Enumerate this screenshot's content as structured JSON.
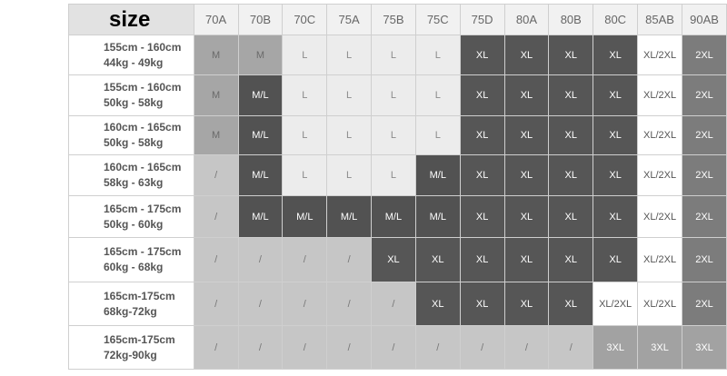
{
  "table": {
    "corner_label": "size",
    "columns": [
      "70A",
      "70B",
      "70C",
      "75A",
      "75B",
      "75C",
      "75D",
      "80A",
      "80B",
      "80C",
      "85AB",
      "90AB"
    ],
    "rows": [
      {
        "height_range": "155cm - 160cm",
        "weight_range": "44kg - 49kg",
        "sizes": [
          "M",
          "M",
          "L",
          "L",
          "L",
          "L",
          "XL",
          "XL",
          "XL",
          "XL",
          "XL/2XL",
          "2XL"
        ]
      },
      {
        "height_range": "155cm - 160cm",
        "weight_range": "50kg - 58kg",
        "sizes": [
          "M",
          "M/L",
          "L",
          "L",
          "L",
          "L",
          "XL",
          "XL",
          "XL",
          "XL",
          "XL/2XL",
          "2XL"
        ]
      },
      {
        "height_range": "160cm - 165cm",
        "weight_range": "50kg - 58kg",
        "sizes": [
          "M",
          "M/L",
          "L",
          "L",
          "L",
          "L",
          "XL",
          "XL",
          "XL",
          "XL",
          "XL/2XL",
          "2XL"
        ]
      },
      {
        "height_range": "160cm - 165cm",
        "weight_range": "58kg - 63kg",
        "sizes": [
          "/",
          "M/L",
          "L",
          "L",
          "L",
          "M/L",
          "XL",
          "XL",
          "XL",
          "XL",
          "XL/2XL",
          "2XL"
        ]
      },
      {
        "height_range": "165cm - 175cm",
        "weight_range": "50kg - 60kg",
        "sizes": [
          "/",
          "M/L",
          "M/L",
          "M/L",
          "M/L",
          "M/L",
          "XL",
          "XL",
          "XL",
          "XL",
          "XL/2XL",
          "2XL"
        ]
      },
      {
        "height_range": "165cm - 175cm",
        "weight_range": "60kg - 68kg",
        "sizes": [
          "/",
          "/",
          "/",
          "/",
          "XL",
          "XL",
          "XL",
          "XL",
          "XL",
          "XL",
          "XL/2XL",
          "2XL"
        ]
      },
      {
        "height_range": "165cm-175cm",
        "weight_range": "68kg-72kg",
        "sizes": [
          "/",
          "/",
          "/",
          "/",
          "/",
          "XL",
          "XL",
          "XL",
          "XL",
          "XL/2XL",
          "XL/2XL",
          "2XL"
        ]
      },
      {
        "height_range": "165cm-175cm",
        "weight_range": "72kg-90kg",
        "sizes": [
          "/",
          "/",
          "/",
          "/",
          "/",
          "/",
          "/",
          "/",
          "/",
          "3XL",
          "3XL",
          "3XL"
        ]
      }
    ]
  },
  "size_colors": {
    "M": {
      "bg": "#a6a6a6",
      "fg": "#6a6a6a"
    },
    "M/L": {
      "bg": "#525252",
      "fg": "#ffffff"
    },
    "L": {
      "bg": "#ececec",
      "fg": "#8a8a8a"
    },
    "XL": {
      "bg": "#565656",
      "fg": "#ffffff"
    },
    "XL/2XL": {
      "bg": "#ffffff",
      "fg": "#555555"
    },
    "2XL": {
      "bg": "#7c7c7c",
      "fg": "#ffffff"
    },
    "3XL": {
      "bg": "#a2a2a2",
      "fg": "#ffffff"
    },
    "/": {
      "bg": "#c6c6c6",
      "fg": "#777777"
    }
  }
}
